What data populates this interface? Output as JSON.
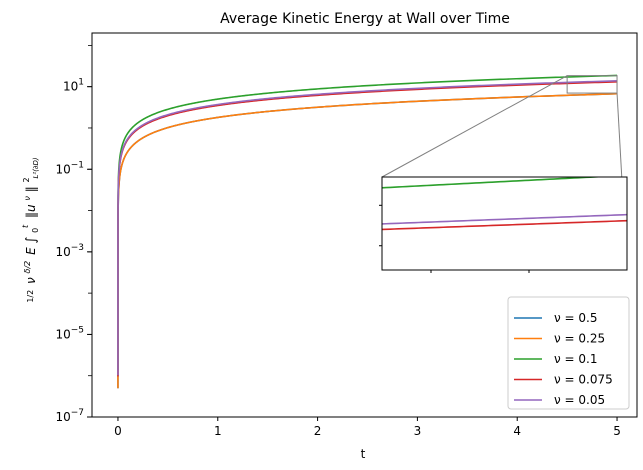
{
  "chart_data": {
    "type": "line",
    "title": "Average Kinetic Energy at Wall over Time",
    "xlabel": "t",
    "ylabel": "½ ν^{δ/2} E ∫₀ᵗ ‖u^ν‖²_{L²(∂D)}",
    "ylabel_parts": {
      "frac": "1/2",
      "nu": "ν",
      "exp": "δ/2",
      "expect": "E",
      "integral": "∫",
      "lower": "0",
      "upper": "t",
      "norm": "‖u",
      "norm_sup": "ν",
      "norm_end": "‖",
      "sub": "L²(∂D)",
      "sup2": "2"
    },
    "xlim": [
      -0.26,
      5.2
    ],
    "ylim_log10": [
      -7,
      2.3
    ],
    "x_ticks": [
      0,
      1,
      2,
      3,
      4,
      5
    ],
    "x_tick_labels": [
      "0",
      "1",
      "2",
      "3",
      "4",
      "5"
    ],
    "y_ticks_log10": [
      -7,
      -5,
      -3,
      -1,
      1
    ],
    "y_tick_labels": [
      {
        "base": "10",
        "exp": "−7"
      },
      {
        "base": "10",
        "exp": "−5"
      },
      {
        "base": "10",
        "exp": "−3"
      },
      {
        "base": "10",
        "exp": "−1"
      },
      {
        "base": "10",
        "exp": "1"
      }
    ],
    "series_model": "y = a * t^0.82",
    "series": [
      {
        "name": "ν = 0.5",
        "color": "#1f77b4",
        "a": 1.8,
        "t_end": 5.0
      },
      {
        "name": "ν = 0.25",
        "color": "#ff7f0e",
        "a": 1.8,
        "t_end": 5.0
      },
      {
        "name": "ν = 0.1",
        "color": "#2ca02c",
        "a": 5.0,
        "t_end": 5.0
      },
      {
        "name": "ν = 0.075",
        "color": "#d62728",
        "a": 3.5,
        "t_end": 5.0
      },
      {
        "name": "ν = 0.05",
        "color": "#9467bd",
        "a": 3.7,
        "t_end": 5.0
      }
    ],
    "inset": {
      "xlim": [
        4.5,
        5.0
      ],
      "ylim": [
        7.0,
        18.5
      ],
      "zoom_region_color": "#808080"
    },
    "legend_position": "lower-right"
  }
}
